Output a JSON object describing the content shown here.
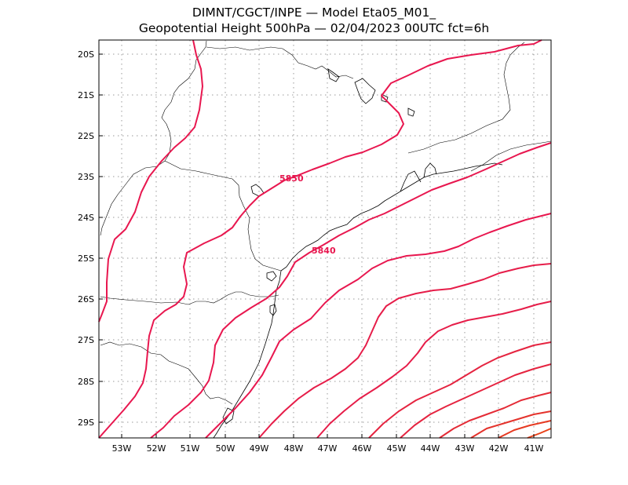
{
  "title": {
    "line1": "DIMNT/CGCT/INPE —  Model Eta05_M01_",
    "line2": "Geopotential Height 500hPa —  02/04/2023 00UTC fct=6h"
  },
  "lat_labels": [
    "20S",
    "21S",
    "22S",
    "23S",
    "24S",
    "25S",
    "26S",
    "27S",
    "28S",
    "29S"
  ],
  "lon_labels": [
    "53W",
    "52W",
    "51W",
    "50W",
    "49W",
    "48W",
    "47W",
    "46W",
    "45W",
    "44W",
    "43W",
    "42W",
    "41W"
  ],
  "contour_labels": [
    "5850",
    "5840"
  ],
  "colors": {
    "contour_main": "#e8174f",
    "contour_ramp": [
      "#e8174f",
      "#e61d49",
      "#e52440",
      "#e42b36",
      "#e4332c",
      "#e63a22",
      "#e8421a"
    ],
    "coast": "#000000",
    "grid": "#9a9a9a"
  },
  "map": {
    "lon_range": [
      "53.6W",
      "40.5W"
    ],
    "lat_range": [
      "19.6S",
      "29.4S"
    ],
    "gridlines": "dotted",
    "contour_interval": 10
  }
}
